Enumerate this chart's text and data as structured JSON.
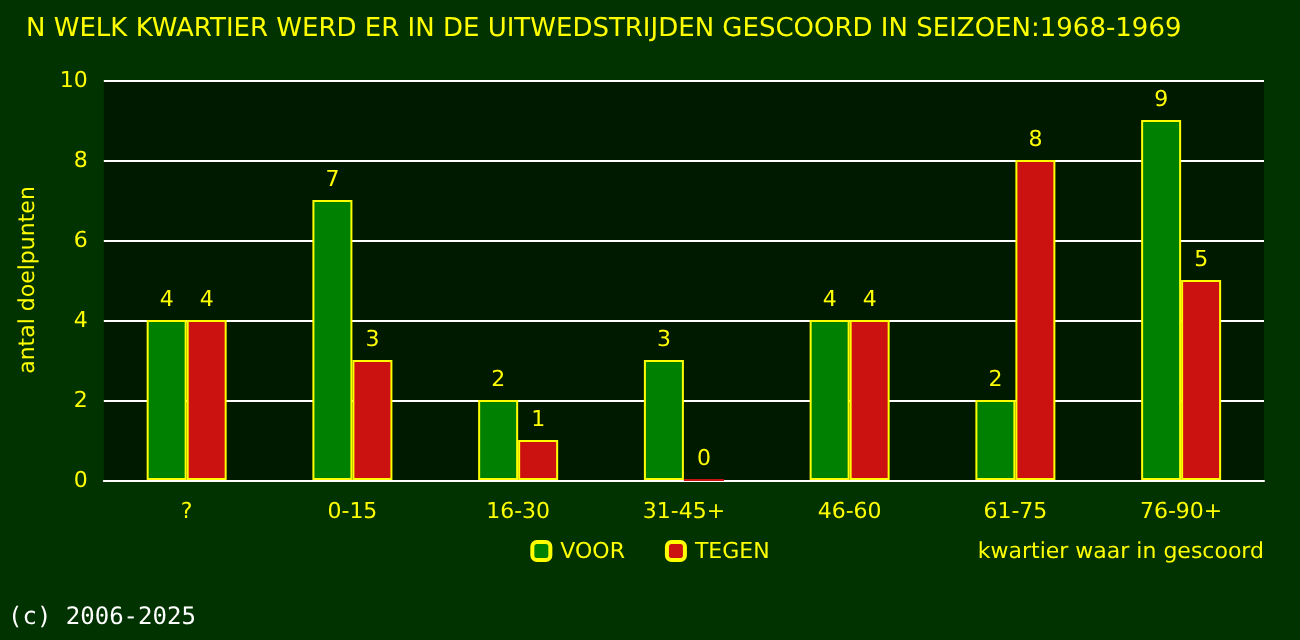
{
  "chart_data": {
    "type": "bar",
    "title": "N WELK KWARTIER WERD ER IN DE UITWEDSTRIJDEN GESCOORD IN SEIZOEN:1968-1969",
    "xlabel": "kwartier waar in gescoord",
    "ylabel": "antal doelpunten",
    "categories": [
      "?",
      "0-15",
      "16-30",
      "31-45+",
      "46-60",
      "61-75",
      "76-90+"
    ],
    "series": [
      {
        "name": "VOOR",
        "color": "#008000",
        "values": [
          4,
          7,
          2,
          3,
          4,
          2,
          9
        ]
      },
      {
        "name": "TEGEN",
        "color": "#cc1111",
        "values": [
          4,
          3,
          1,
          0,
          4,
          8,
          5
        ]
      }
    ],
    "ylim": [
      0,
      10
    ],
    "yticks": [
      0,
      2,
      4,
      6,
      8,
      10
    ],
    "grid": "y",
    "legend": "bottom",
    "data_labels": true,
    "annotations": [
      "(c) 2006-2025"
    ]
  }
}
